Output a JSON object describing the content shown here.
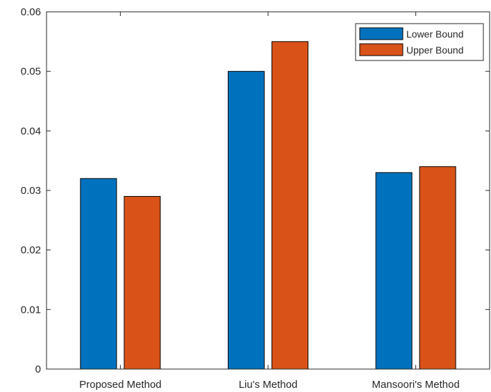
{
  "chart_data": {
    "type": "bar",
    "title": "",
    "xlabel": "",
    "ylabel": "",
    "categories": [
      "Proposed Method",
      "Liu's Method",
      "Mansoori's Method"
    ],
    "series": [
      {
        "name": "Lower Bound",
        "values": [
          0.032,
          0.05,
          0.033
        ],
        "color": "#0072BD"
      },
      {
        "name": "Upper Bound",
        "values": [
          0.029,
          0.055,
          0.034
        ],
        "color": "#D95319"
      }
    ],
    "ylim": [
      0,
      0.06
    ],
    "yticks": [
      "0",
      "0.01",
      "0.02",
      "0.03",
      "0.04",
      "0.05",
      "0.06"
    ],
    "grid": false,
    "legend_position": "top-right"
  }
}
